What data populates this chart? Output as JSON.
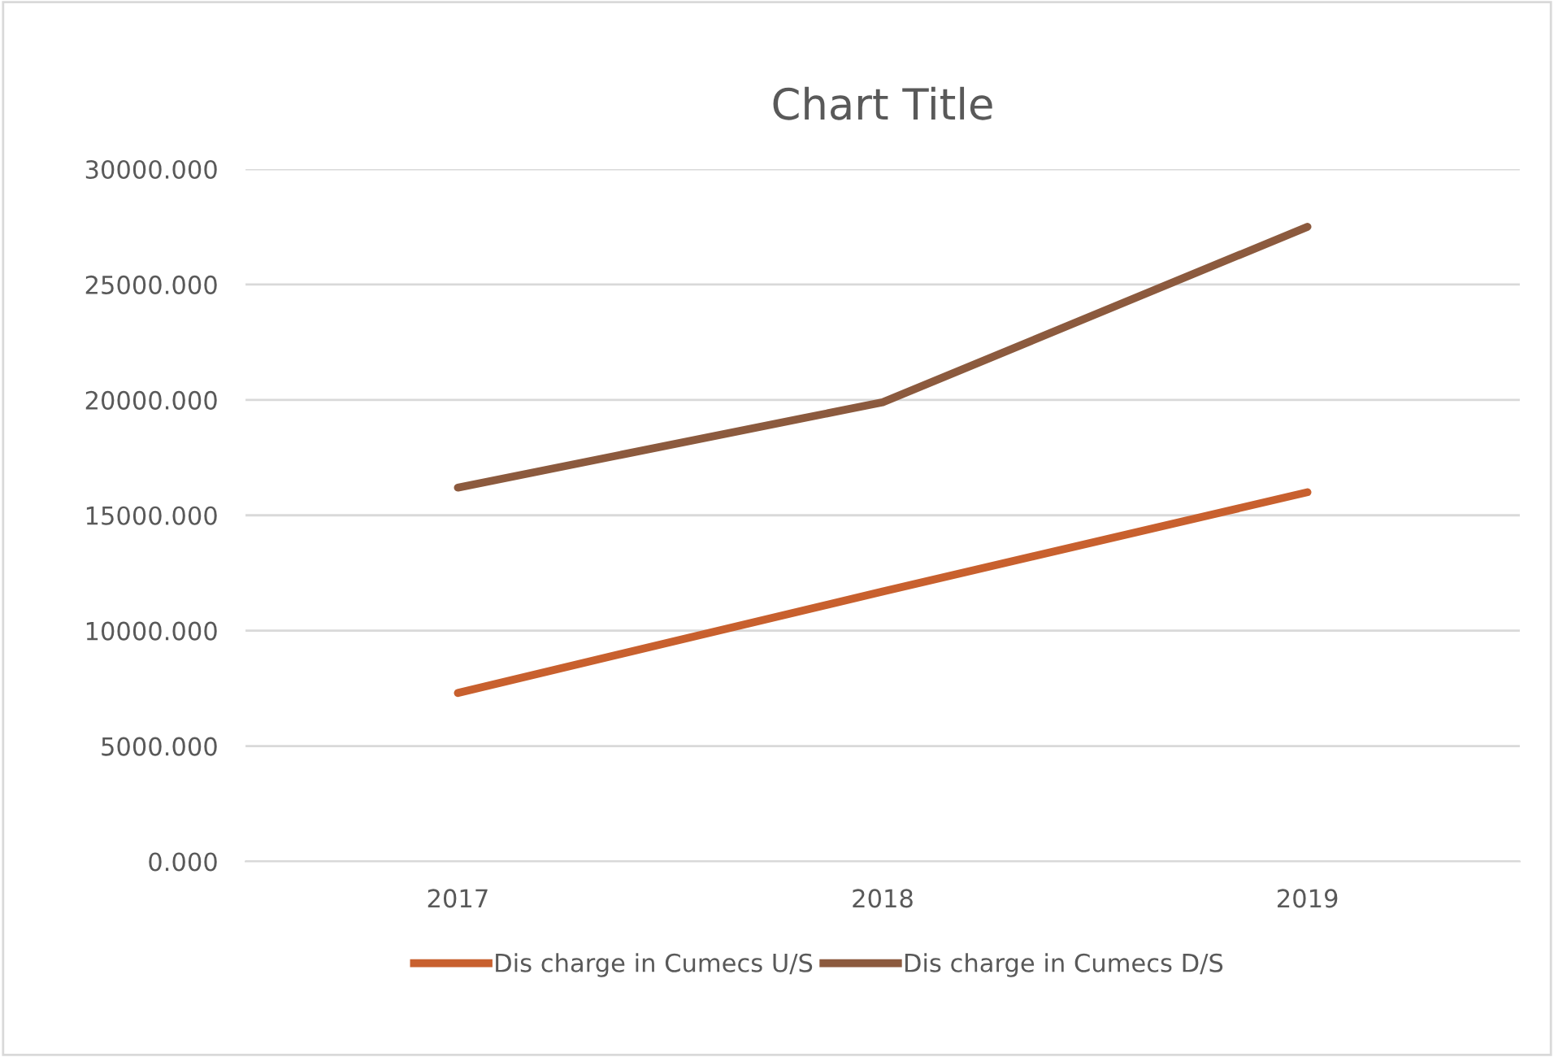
{
  "chart_data": {
    "type": "line",
    "title": "Chart Title",
    "categories": [
      "2017",
      "2018",
      "2019"
    ],
    "series": [
      {
        "name": "Dis charge in Cumecs U/S",
        "color": "#c8602e",
        "values": [
          7300,
          11700,
          16000
        ]
      },
      {
        "name": "Dis charge in Cumecs D/S",
        "color": "#8c5a3e",
        "values": [
          16200,
          19900,
          27500
        ]
      }
    ],
    "ylim": [
      0,
      30000
    ],
    "yticks": [
      {
        "value": 0,
        "label": "0.000"
      },
      {
        "value": 5000,
        "label": "5000.000"
      },
      {
        "value": 10000,
        "label": "10000.000"
      },
      {
        "value": 15000,
        "label": "15000.000"
      },
      {
        "value": 20000,
        "label": "20000.000"
      },
      {
        "value": 25000,
        "label": "25000.000"
      },
      {
        "value": 30000,
        "label": "30000.000"
      }
    ],
    "grid": "y",
    "legend": "bottom",
    "marker": "none",
    "line_style": "solid"
  }
}
